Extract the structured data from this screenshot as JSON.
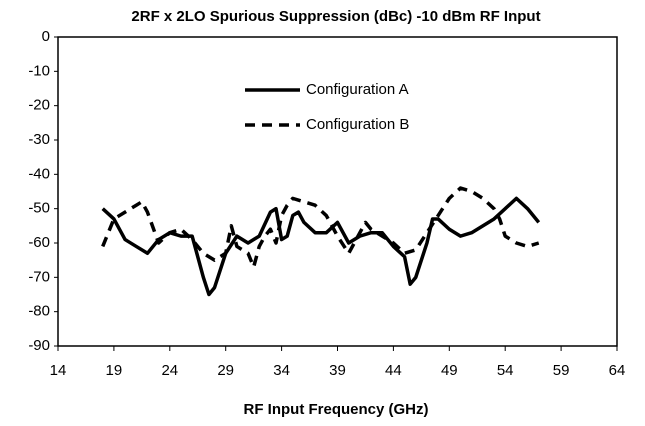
{
  "chart_data": {
    "type": "line",
    "title": "2RF x 2LO Spurious Suppression (dBc) -10 dBm RF Input",
    "x_label": "RF Input Frequency (GHz)",
    "xlim": [
      14,
      64
    ],
    "xticks": [
      14,
      19,
      24,
      29,
      34,
      39,
      44,
      49,
      54,
      59,
      64
    ],
    "ylim": [
      -90,
      0
    ],
    "yticks": [
      0,
      -10,
      -20,
      -30,
      -40,
      -50,
      -60,
      -70,
      -80,
      -90
    ],
    "grid": false,
    "legend": "top",
    "series": [
      {
        "name": "Configuration A",
        "color": "#000000",
        "dash": "solid",
        "x": [
          18,
          19,
          20,
          21,
          22,
          23,
          24,
          25,
          26,
          27,
          27.5,
          28,
          29,
          30,
          31,
          32,
          33,
          33.5,
          34,
          34.5,
          35,
          35.5,
          36,
          37,
          38,
          39,
          40,
          41,
          42,
          43,
          44,
          45,
          45.5,
          46,
          47,
          47.5,
          48,
          49,
          50,
          51,
          52,
          53,
          54,
          55,
          56,
          57
        ],
        "values": [
          -50,
          -53,
          -59,
          -61,
          -63,
          -59,
          -57,
          -58,
          -58,
          -70,
          -75,
          -73,
          -63,
          -58,
          -60,
          -58,
          -51,
          -50,
          -59,
          -58,
          -52,
          -51,
          -54,
          -57,
          -57,
          -54,
          -60,
          -58,
          -57,
          -57,
          -61,
          -64,
          -72,
          -70,
          -60,
          -53,
          -53,
          -56,
          -58,
          -57,
          -55,
          -53,
          -50,
          -47,
          -50,
          -54
        ]
      },
      {
        "name": "Configuration B",
        "color": "#000000",
        "dash": "dashed",
        "x": [
          18,
          19,
          20,
          21,
          21.5,
          22,
          23,
          24,
          25,
          26,
          27,
          28,
          29,
          29.5,
          30,
          31,
          31.5,
          32,
          32.5,
          33,
          33.5,
          34,
          34.5,
          35,
          36,
          37,
          38,
          39,
          40,
          41,
          41.5,
          42,
          43,
          44,
          45,
          46,
          47,
          48,
          49,
          50,
          51,
          52,
          53,
          53.5,
          54,
          55,
          56,
          57
        ],
        "values": [
          -61,
          -53,
          -51,
          -49,
          -48,
          -51,
          -60,
          -57,
          -56,
          -59,
          -63,
          -65,
          -63,
          -55,
          -61,
          -63,
          -67,
          -61,
          -58,
          -56,
          -60,
          -52,
          -49,
          -47,
          -48,
          -49,
          -52,
          -58,
          -63,
          -57,
          -54,
          -56,
          -58,
          -60,
          -63,
          -62,
          -57,
          -52,
          -47,
          -44,
          -45,
          -47,
          -50,
          -53,
          -58,
          -60,
          -61,
          -60
        ]
      }
    ]
  }
}
